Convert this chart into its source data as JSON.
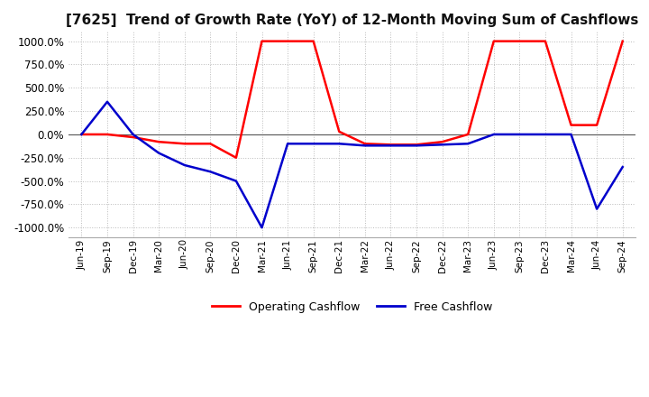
{
  "title": "[7625]  Trend of Growth Rate (YoY) of 12-Month Moving Sum of Cashflows",
  "title_fontsize": 11,
  "ylim": [
    -1100,
    1100
  ],
  "yticks": [
    1000.0,
    750.0,
    500.0,
    250.0,
    0.0,
    -250.0,
    -500.0,
    -750.0,
    -1000.0
  ],
  "background_color": "#ffffff",
  "grid_color": "#bbbbbb",
  "operating_color": "#ff0000",
  "free_color": "#0000cc",
  "legend_labels": [
    "Operating Cashflow",
    "Free Cashflow"
  ],
  "x_labels": [
    "Jun-19",
    "Sep-19",
    "Dec-19",
    "Mar-20",
    "Jun-20",
    "Sep-20",
    "Dec-20",
    "Mar-21",
    "Jun-21",
    "Sep-21",
    "Dec-21",
    "Mar-22",
    "Jun-22",
    "Sep-22",
    "Dec-22",
    "Mar-23",
    "Jun-23",
    "Sep-23",
    "Dec-23",
    "Mar-24",
    "Jun-24",
    "Sep-24"
  ],
  "operating_cashflow": [
    0,
    0,
    -30,
    -80,
    -100,
    -100,
    -250,
    1000,
    1000,
    1000,
    30,
    -100,
    -110,
    -110,
    -80,
    0,
    1000,
    1000,
    1000,
    100,
    100,
    1000
  ],
  "free_cashflow": [
    0,
    350,
    0,
    -200,
    -330,
    -400,
    -500,
    -1000,
    -100,
    -100,
    -100,
    -120,
    -120,
    -120,
    -110,
    -100,
    0,
    0,
    0,
    0,
    -800,
    -350
  ]
}
